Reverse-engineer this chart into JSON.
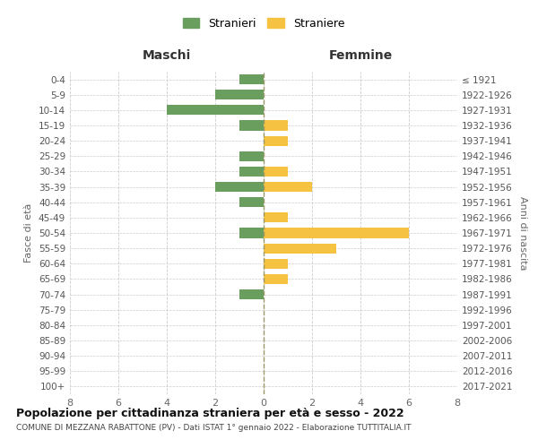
{
  "age_groups": [
    "0-4",
    "5-9",
    "10-14",
    "15-19",
    "20-24",
    "25-29",
    "30-34",
    "35-39",
    "40-44",
    "45-49",
    "50-54",
    "55-59",
    "60-64",
    "65-69",
    "70-74",
    "75-79",
    "80-84",
    "85-89",
    "90-94",
    "95-99",
    "100+"
  ],
  "birth_years": [
    "2017-2021",
    "2012-2016",
    "2007-2011",
    "2002-2006",
    "1997-2001",
    "1992-1996",
    "1987-1991",
    "1982-1986",
    "1977-1981",
    "1972-1976",
    "1967-1971",
    "1962-1966",
    "1957-1961",
    "1952-1956",
    "1947-1951",
    "1942-1946",
    "1937-1941",
    "1932-1936",
    "1927-1931",
    "1922-1926",
    "≤ 1921"
  ],
  "maschi": [
    1,
    2,
    4,
    1,
    0,
    1,
    1,
    2,
    1,
    0,
    1,
    0,
    0,
    0,
    1,
    0,
    0,
    0,
    0,
    0,
    0
  ],
  "femmine": [
    0,
    0,
    0,
    1,
    1,
    0,
    1,
    2,
    0,
    1,
    6,
    3,
    1,
    1,
    0,
    0,
    0,
    0,
    0,
    0,
    0
  ],
  "male_color": "#6a9e5f",
  "female_color": "#f5c242",
  "title": "Popolazione per cittadinanza straniera per età e sesso - 2022",
  "subtitle": "COMUNE DI MEZZANA RABATTONE (PV) - Dati ISTAT 1° gennaio 2022 - Elaborazione TUTTITALIA.IT",
  "xlabel_left": "Maschi",
  "xlabel_right": "Femmine",
  "ylabel_left": "Fasce di età",
  "ylabel_right": "Anni di nascita",
  "legend_male": "Stranieri",
  "legend_female": "Straniere",
  "xlim": 8,
  "background_color": "#ffffff",
  "grid_color": "#cccccc"
}
